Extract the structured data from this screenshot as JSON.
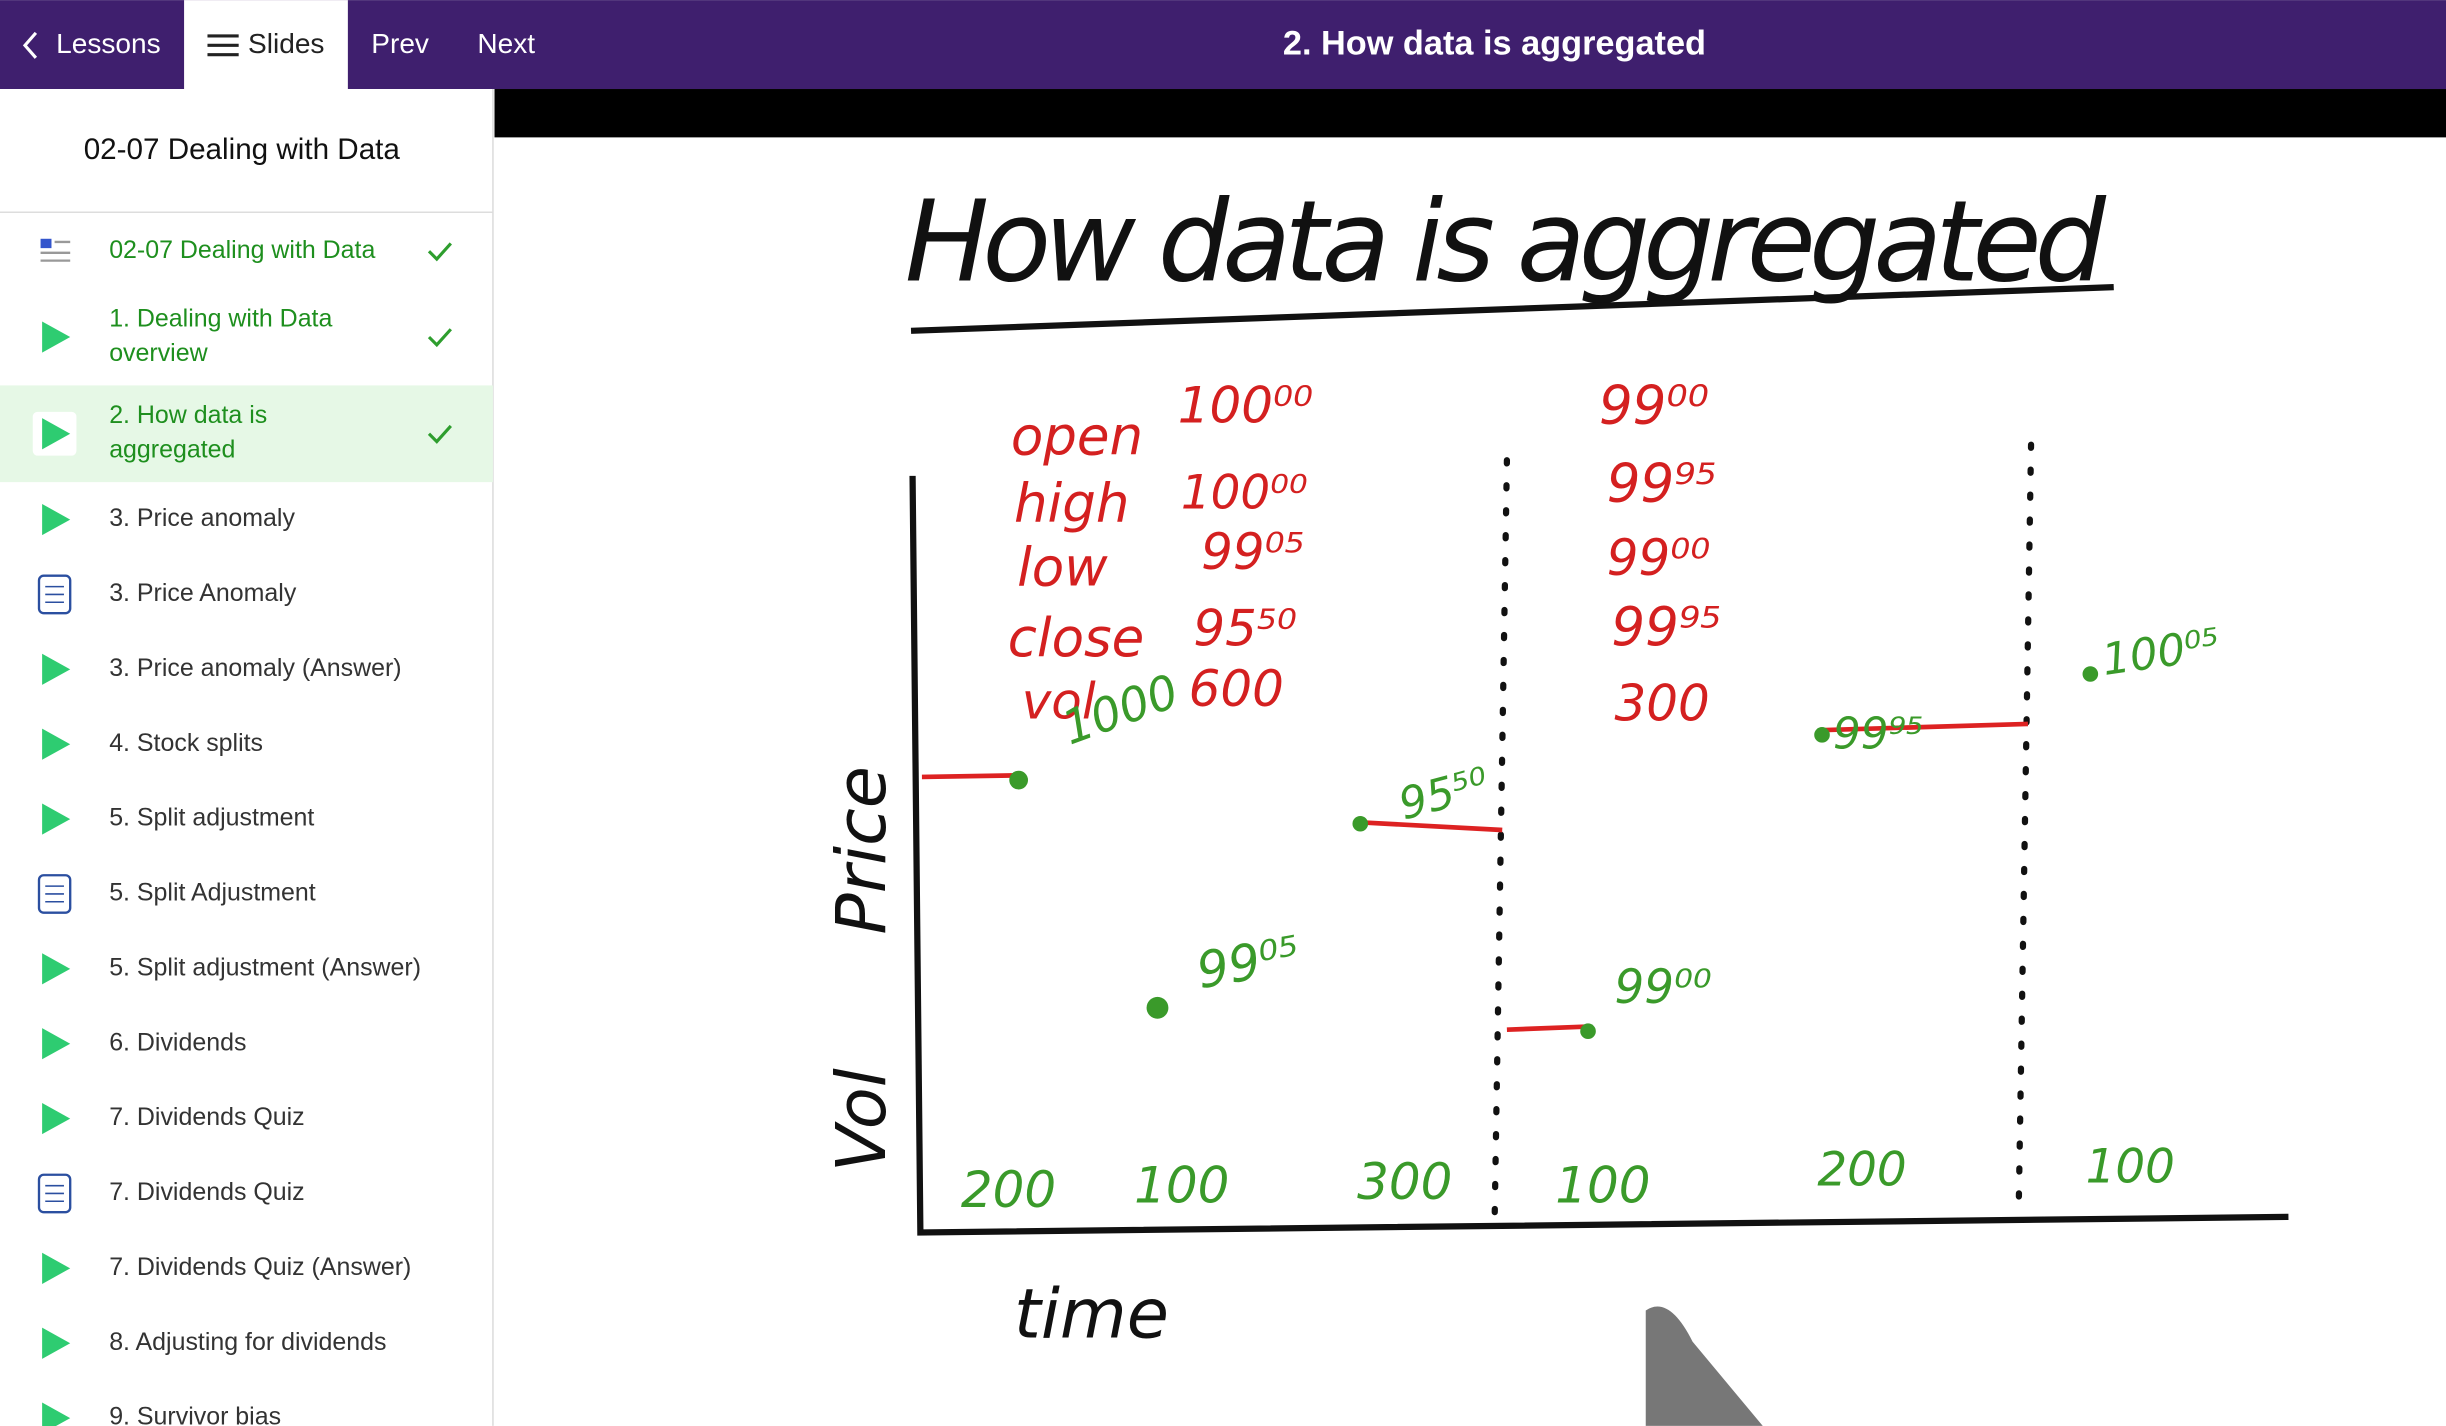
{
  "top_bar": {
    "back": "Lessons",
    "slides": "Slides",
    "prev": "Prev",
    "next": "Next",
    "title": "2. How data is aggregated"
  },
  "sidebar": {
    "title": "02-07 Dealing with Data",
    "items": [
      {
        "lines": [
          "02-07 Dealing with Data"
        ],
        "icon": "doc",
        "done": true
      },
      {
        "lines": [
          "1. Dealing with Data",
          "overview"
        ],
        "icon": "video",
        "done": true
      },
      {
        "lines": [
          "2. How data is",
          "aggregated"
        ],
        "icon": "video",
        "done": true,
        "active": true
      },
      {
        "lines": [
          "3. Price anomaly"
        ],
        "icon": "video"
      },
      {
        "lines": [
          "3. Price Anomaly"
        ],
        "icon": "quiz"
      },
      {
        "lines": [
          "3. Price anomaly (Answer)"
        ],
        "icon": "video"
      },
      {
        "lines": [
          "4. Stock splits"
        ],
        "icon": "video"
      },
      {
        "lines": [
          "5. Split adjustment"
        ],
        "icon": "video"
      },
      {
        "lines": [
          "5. Split Adjustment"
        ],
        "icon": "quiz"
      },
      {
        "lines": [
          "5. Split adjustment (Answer)"
        ],
        "icon": "video"
      },
      {
        "lines": [
          "6. Dividends"
        ],
        "icon": "video"
      },
      {
        "lines": [
          "7. Dividends Quiz"
        ],
        "icon": "video"
      },
      {
        "lines": [
          "7. Dividends Quiz"
        ],
        "icon": "quiz"
      },
      {
        "lines": [
          "7. Dividends Quiz (Answer)"
        ],
        "icon": "video"
      },
      {
        "lines": [
          "8. Adjusting for dividends"
        ],
        "icon": "video"
      },
      {
        "lines": [
          "9. Survivor bias"
        ],
        "icon": "video"
      }
    ]
  },
  "whiteboard": {
    "title": "How data is aggregated",
    "price_label": "Price",
    "vol_label": "Vol",
    "time_label": "time",
    "annotations": [
      "open",
      "high",
      "low",
      "close",
      "vol",
      "100⁰⁰",
      "100⁰⁰",
      "99⁰⁵",
      "95⁵⁰",
      "600",
      "99⁰⁰",
      "99⁹⁵",
      "99⁰⁰",
      "99⁹⁵",
      "300",
      "1000",
      "95⁵⁰",
      "99⁰⁵",
      "99⁰⁰",
      "99⁹⁵",
      "100⁰⁵",
      "200",
      "100",
      "300",
      "100",
      "200",
      "100"
    ]
  }
}
